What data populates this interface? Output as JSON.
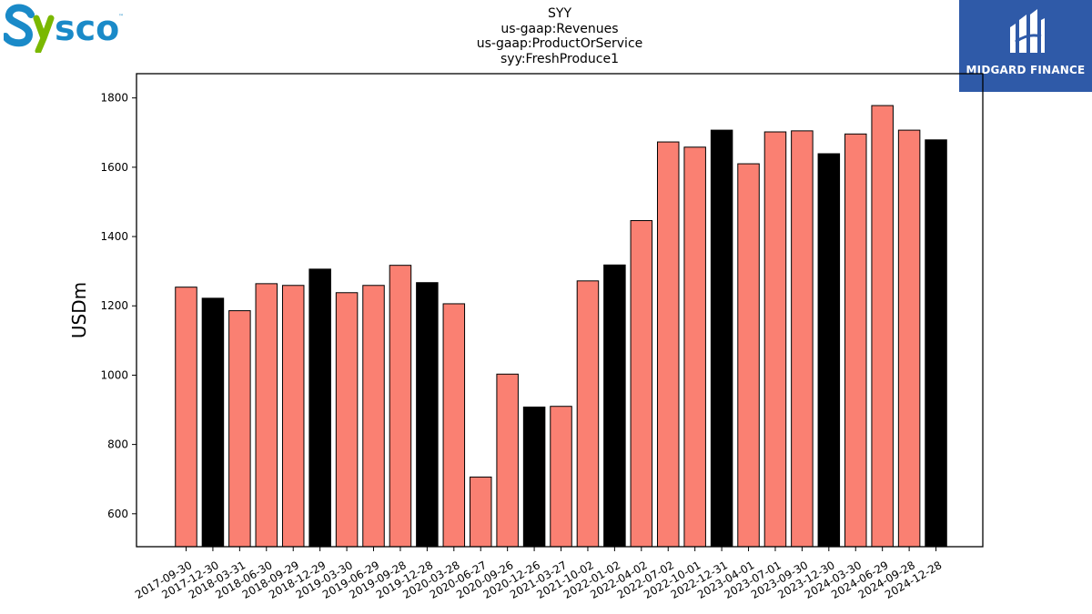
{
  "header": {
    "logo_left": "Sysco",
    "logo_right": "MIDGARD FINANCE"
  },
  "colors": {
    "bar_primary": "#fa8072",
    "bar_alt": "#000000",
    "brand_blue": "#2f5aa8",
    "sysco_blue": "#1a8ac8",
    "sysco_green": "#7ab800"
  },
  "chart_data": {
    "type": "bar",
    "title_lines": [
      "SYY",
      "us-gaap:Revenues",
      "us-gaap:ProductOrService",
      "syy:FreshProduce1"
    ],
    "xlabel": "",
    "ylabel": "USDm",
    "ylim": [
      505,
      1870
    ],
    "yticks": [
      600,
      800,
      1000,
      1200,
      1400,
      1600,
      1800
    ],
    "grid": false,
    "categories": [
      "2017-09-30",
      "2017-12-30",
      "2018-03-31",
      "2018-06-30",
      "2018-09-29",
      "2018-12-29",
      "2019-03-30",
      "2019-06-29",
      "2019-09-28",
      "2019-12-28",
      "2020-03-28",
      "2020-06-27",
      "2020-09-26",
      "2020-12-26",
      "2021-03-27",
      "2021-10-02",
      "2022-01-02",
      "2022-04-02",
      "2022-07-02",
      "2022-10-01",
      "2022-12-31",
      "2023-04-01",
      "2023-07-01",
      "2023-09-30",
      "2023-12-30",
      "2024-03-30",
      "2024-06-29",
      "2024-09-28",
      "2024-12-28"
    ],
    "values": [
      1254,
      1222,
      1186,
      1264,
      1259,
      1306,
      1238,
      1259,
      1317,
      1267,
      1206,
      706,
      1003,
      908,
      910,
      1272,
      1318,
      1446,
      1673,
      1658,
      1707,
      1610,
      1702,
      1705,
      1639,
      1696,
      1778,
      1707,
      1679
    ],
    "bar_colors": [
      "salmon",
      "black",
      "salmon",
      "salmon",
      "salmon",
      "black",
      "salmon",
      "salmon",
      "salmon",
      "black",
      "salmon",
      "salmon",
      "salmon",
      "black",
      "salmon",
      "salmon",
      "black",
      "salmon",
      "salmon",
      "salmon",
      "black",
      "salmon",
      "salmon",
      "salmon",
      "black",
      "salmon",
      "salmon",
      "salmon",
      "black"
    ]
  }
}
